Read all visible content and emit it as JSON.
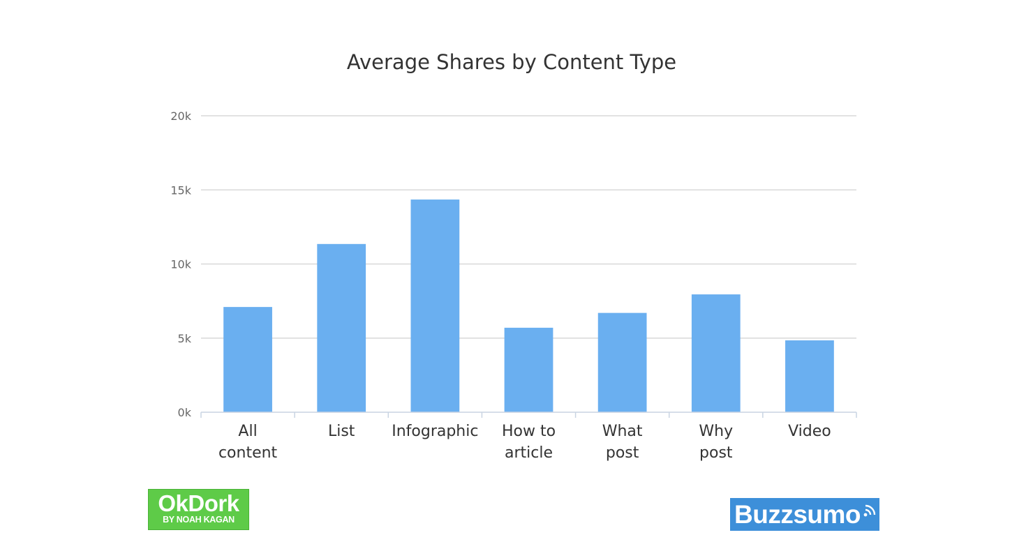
{
  "chart_data": {
    "type": "bar",
    "title": "Average Shares by Content Type",
    "xlabel": "",
    "ylabel": "",
    "categories": [
      [
        "All",
        "content"
      ],
      [
        "List"
      ],
      [
        "Infographic"
      ],
      [
        "How to",
        "article"
      ],
      [
        "What",
        "post"
      ],
      [
        "Why",
        "post"
      ],
      [
        "Video"
      ]
    ],
    "values": [
      7100,
      11350,
      14350,
      5700,
      6700,
      7950,
      4850
    ],
    "ylim": [
      0,
      20000
    ],
    "yticks": [
      {
        "value": 0,
        "label": "0k"
      },
      {
        "value": 5000,
        "label": "5k"
      },
      {
        "value": 10000,
        "label": "10k"
      },
      {
        "value": 15000,
        "label": "15k"
      },
      {
        "value": 20000,
        "label": "20k"
      }
    ],
    "grid": true,
    "legend": "none",
    "bar_color": "#6aaff0",
    "grid_color": "#d8d8d8",
    "axis_color": "#c9d4e2"
  },
  "logos": {
    "okdork": {
      "brand": "OkDork",
      "sub": "BY NOAH KAGAN",
      "color": "#5ecb48"
    },
    "buzzsumo": {
      "brand": "Buzzsumo",
      "icon": "signal-icon",
      "color": "#3d8fd9"
    }
  }
}
